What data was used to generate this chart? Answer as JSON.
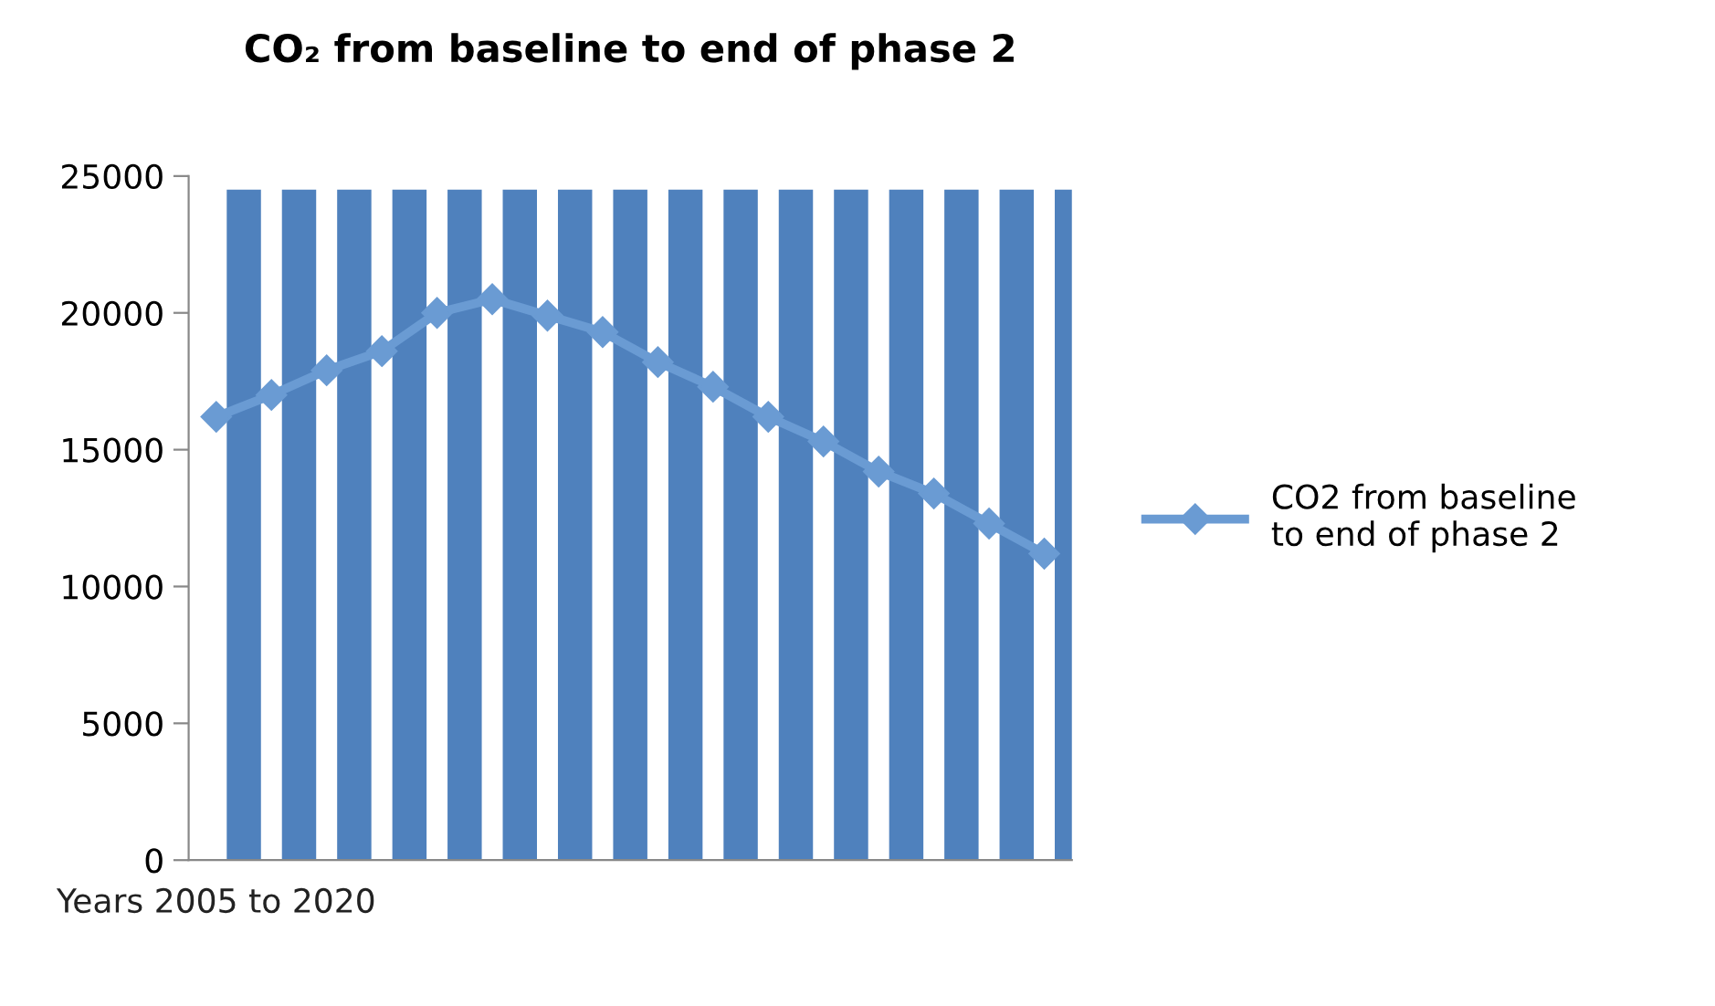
{
  "chart_data": {
    "type": "line",
    "title": "CO₂ from baseline to end of phase 2",
    "categories": [
      "Years 2005 to 2020",
      null,
      null,
      null,
      null,
      null,
      null,
      null,
      null,
      null,
      null,
      null,
      null,
      null,
      null,
      null
    ],
    "series": [
      {
        "type": "bar",
        "color": "#4f81bd",
        "values": [
          24500,
          24500,
          24500,
          24500,
          24500,
          24500,
          24500,
          24500,
          24500,
          24500,
          24500,
          24500,
          24500,
          24500,
          24500,
          24500
        ]
      },
      {
        "name": "CO2 from baseline to end of phase 2",
        "color": "#6a9bd3",
        "marker": "diamond",
        "values": [
          16200,
          17000,
          17900,
          18600,
          20000,
          20500,
          19900,
          19300,
          18200,
          17300,
          16200,
          15300,
          14200,
          13400,
          12300,
          11200
        ]
      }
    ],
    "ylim": [
      0,
      25000
    ],
    "yticks": [
      0,
      5000,
      10000,
      15000,
      20000,
      25000
    ],
    "grid": false,
    "legend": "right"
  }
}
